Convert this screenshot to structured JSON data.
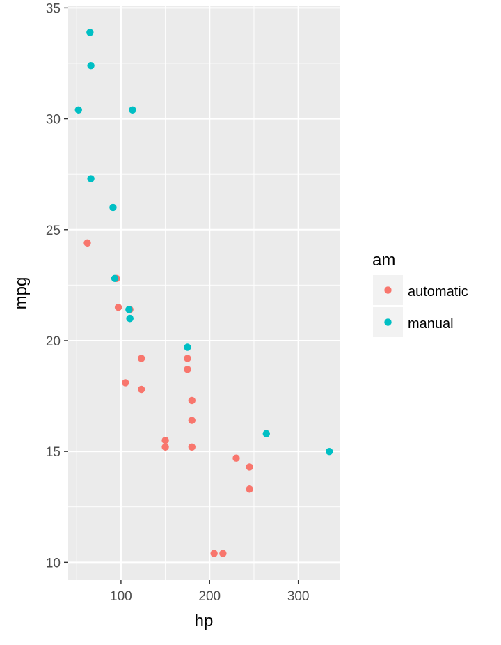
{
  "chart_data": {
    "type": "scatter",
    "xlabel": "hp",
    "ylabel": "mpg",
    "xlim": [
      40.4,
      346.6
    ],
    "ylim": [
      9.225,
      35.075
    ],
    "x_ticks": [
      100,
      200,
      300
    ],
    "y_ticks": [
      10,
      15,
      20,
      25,
      30,
      35
    ],
    "x_tick_labels": [
      "100",
      "200",
      "300"
    ],
    "y_tick_labels": [
      "10",
      "15",
      "20",
      "25",
      "30",
      "35"
    ],
    "grid": true,
    "legend": {
      "title": "am",
      "placement": "right"
    },
    "series": [
      {
        "name": "automatic",
        "color": "#F8766D",
        "points": [
          {
            "x": 62,
            "y": 24.4
          },
          {
            "x": 95,
            "y": 22.8
          },
          {
            "x": 97,
            "y": 21.5
          },
          {
            "x": 105,
            "y": 18.1
          },
          {
            "x": 110,
            "y": 21.4
          },
          {
            "x": 123,
            "y": 19.2
          },
          {
            "x": 123,
            "y": 17.8
          },
          {
            "x": 150,
            "y": 15.5
          },
          {
            "x": 150,
            "y": 15.2
          },
          {
            "x": 175,
            "y": 19.2
          },
          {
            "x": 175,
            "y": 18.7
          },
          {
            "x": 180,
            "y": 17.3
          },
          {
            "x": 180,
            "y": 16.4
          },
          {
            "x": 180,
            "y": 15.2
          },
          {
            "x": 205,
            "y": 10.4
          },
          {
            "x": 215,
            "y": 10.4
          },
          {
            "x": 230,
            "y": 14.7
          },
          {
            "x": 245,
            "y": 14.3
          },
          {
            "x": 245,
            "y": 13.3
          }
        ]
      },
      {
        "name": "manual",
        "color": "#00BFC4",
        "points": [
          {
            "x": 52,
            "y": 30.4
          },
          {
            "x": 65,
            "y": 33.9
          },
          {
            "x": 66,
            "y": 32.4
          },
          {
            "x": 66,
            "y": 27.3
          },
          {
            "x": 91,
            "y": 26.0
          },
          {
            "x": 93,
            "y": 22.8
          },
          {
            "x": 109,
            "y": 21.4
          },
          {
            "x": 110,
            "y": 21.0
          },
          {
            "x": 110,
            "y": 21.0
          },
          {
            "x": 113,
            "y": 30.4
          },
          {
            "x": 175,
            "y": 19.7
          },
          {
            "x": 264,
            "y": 15.8
          },
          {
            "x": 335,
            "y": 15.0
          }
        ]
      }
    ]
  }
}
